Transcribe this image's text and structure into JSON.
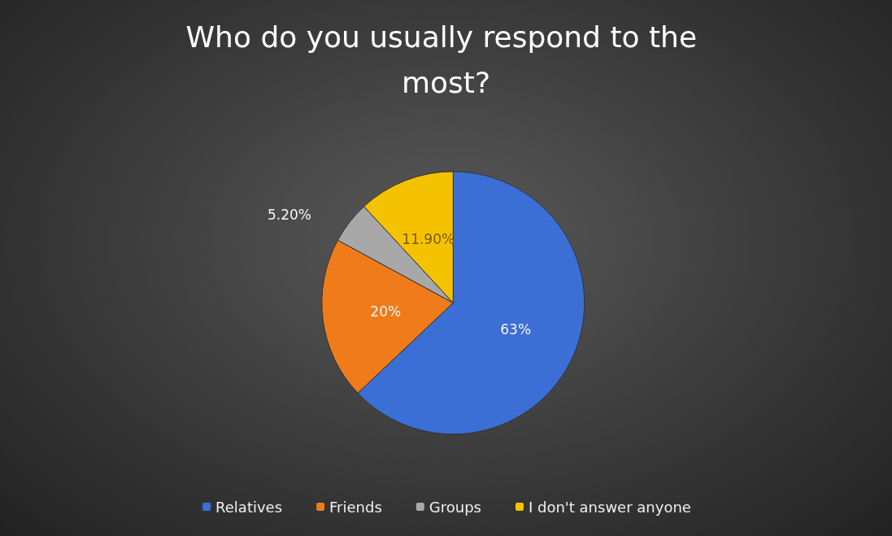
{
  "chart_data": {
    "type": "pie",
    "title": "Who do you usually respond to the most?",
    "categories": [
      "Relatives",
      "Friends",
      "Groups",
      "I don't answer anyone"
    ],
    "values": [
      63,
      20,
      5.2,
      11.9
    ],
    "value_labels": [
      "63%",
      "20%",
      "5.20%",
      "11.90%"
    ],
    "colors": [
      "#3b6fd6",
      "#f07b1a",
      "#a8a8a8",
      "#f5c200"
    ],
    "legend": "bottom"
  }
}
